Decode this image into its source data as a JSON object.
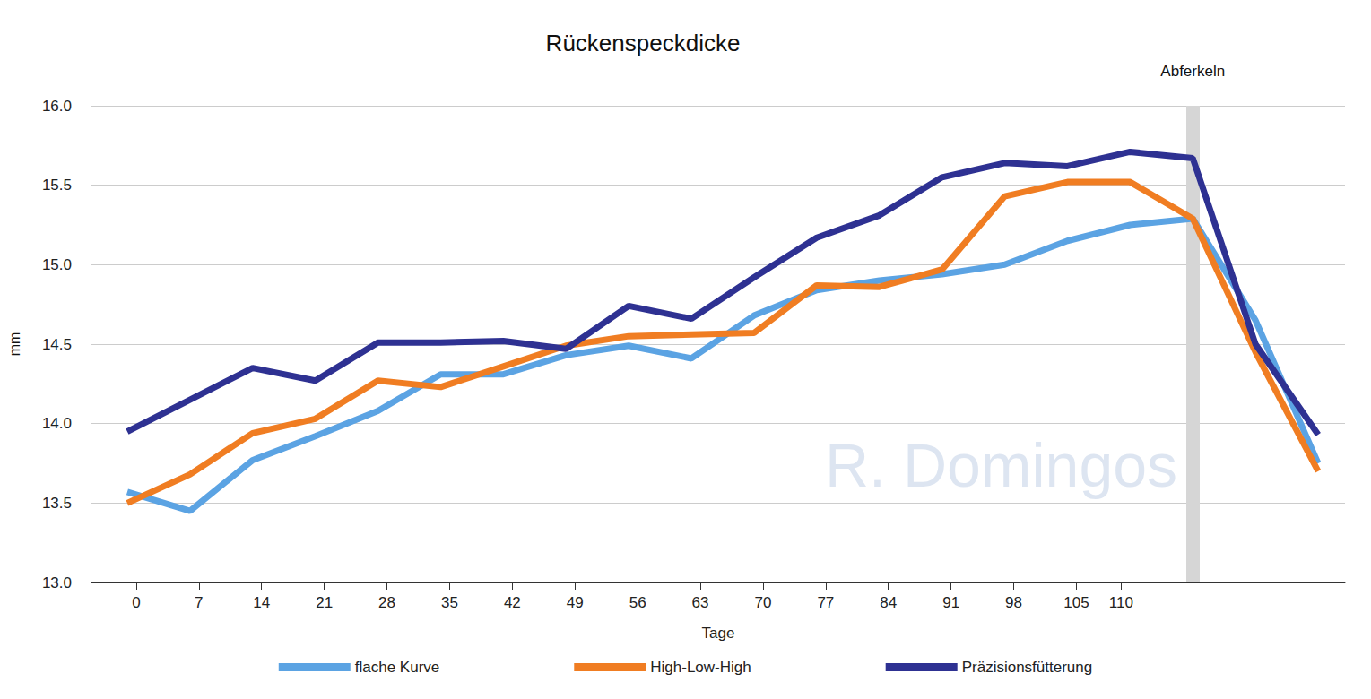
{
  "chart_data": {
    "type": "line",
    "title": "Rückenspeckdicke",
    "x_label": "Tage",
    "y_label": "mm",
    "x": [
      -1,
      6,
      13,
      20,
      27,
      34,
      41,
      48,
      55,
      62,
      69,
      76,
      83,
      90,
      97,
      104,
      111,
      118,
      125,
      132
    ],
    "series": [
      {
        "name": "flache Kurve",
        "color": "#5ba3e3",
        "values": [
          13.57,
          13.45,
          13.77,
          13.92,
          14.08,
          14.31,
          14.31,
          14.43,
          14.49,
          14.41,
          14.68,
          14.84,
          14.9,
          14.94,
          15.0,
          15.15,
          15.25,
          15.29,
          14.65,
          13.75
        ]
      },
      {
        "name": "High-Low-High",
        "color": "#f07d22",
        "values": [
          13.5,
          13.68,
          13.94,
          14.03,
          14.27,
          14.23,
          14.36,
          14.49,
          14.55,
          14.56,
          14.57,
          14.87,
          14.86,
          14.97,
          15.43,
          15.52,
          15.52,
          15.29,
          14.45,
          13.7
        ]
      },
      {
        "name": "Präzisionsfütterung",
        "color": "#2e3192",
        "values": [
          13.95,
          14.15,
          14.35,
          14.27,
          14.51,
          14.51,
          14.52,
          14.47,
          14.74,
          14.66,
          14.92,
          15.17,
          15.31,
          15.55,
          15.64,
          15.62,
          15.71,
          15.67,
          14.5,
          13.93
        ]
      }
    ],
    "xlim": [
      -5,
      135
    ],
    "xticks": [
      0,
      7,
      14,
      21,
      28,
      35,
      42,
      49,
      56,
      63,
      70,
      77,
      84,
      91,
      98,
      105,
      110
    ],
    "ylim": [
      13,
      16
    ],
    "yticks": [
      {
        "value": 13,
        "label": "13.0"
      },
      {
        "value": 13.5,
        "label": "13.5"
      },
      {
        "value": 14,
        "label": "14.0"
      },
      {
        "value": 14.5,
        "label": "14.5"
      },
      {
        "value": 15,
        "label": "15.0"
      },
      {
        "value": 15.5,
        "label": "15.5"
      },
      {
        "value": 16,
        "label": "16.0"
      }
    ],
    "annotations": [
      {
        "text": "Abferkeln",
        "x": 118
      },
      {
        "text": "R. Domingos"
      }
    ],
    "grid": true,
    "legend": "bottom"
  }
}
